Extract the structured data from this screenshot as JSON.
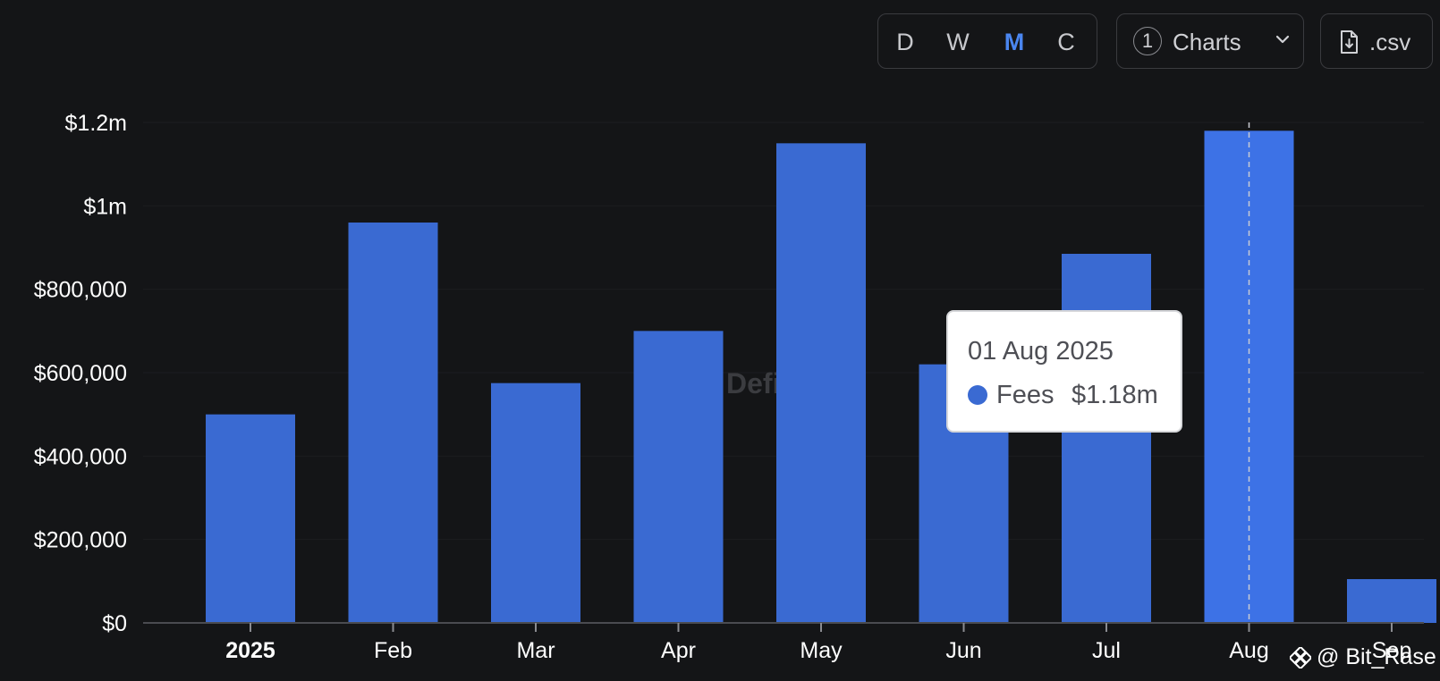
{
  "controls": {
    "intervals": [
      "D",
      "W",
      "M",
      "C"
    ],
    "active_interval": "M",
    "charts_count": "1",
    "charts_label": "Charts",
    "csv_label": ".csv"
  },
  "chart_data": {
    "type": "bar",
    "categories": [
      "2025",
      "Feb",
      "Mar",
      "Apr",
      "May",
      "Jun",
      "Jul",
      "Aug",
      "Sep"
    ],
    "series": [
      {
        "name": "Fees",
        "color": "#3a6ad2",
        "values": [
          500000,
          960000,
          575000,
          700000,
          1150000,
          620000,
          885000,
          1180000,
          105000
        ]
      }
    ],
    "ylim": [
      0,
      1200000
    ],
    "yticks": [
      {
        "value": 0,
        "label": "$0"
      },
      {
        "value": 200000,
        "label": "$200,000"
      },
      {
        "value": 400000,
        "label": "$400,000"
      },
      {
        "value": 600000,
        "label": "$600,000"
      },
      {
        "value": 800000,
        "label": "$800,000"
      },
      {
        "value": 1000000,
        "label": "$1m"
      },
      {
        "value": 1200000,
        "label": "$1.2m"
      }
    ],
    "highlight_index": 7,
    "highlight_color": "#3d72e6",
    "watermark": "DefiLlama"
  },
  "tooltip": {
    "date": "01 Aug 2025",
    "series_name": "Fees",
    "value": "$1.18m"
  },
  "corner_watermark": {
    "text": "@ Bit_Rase"
  }
}
